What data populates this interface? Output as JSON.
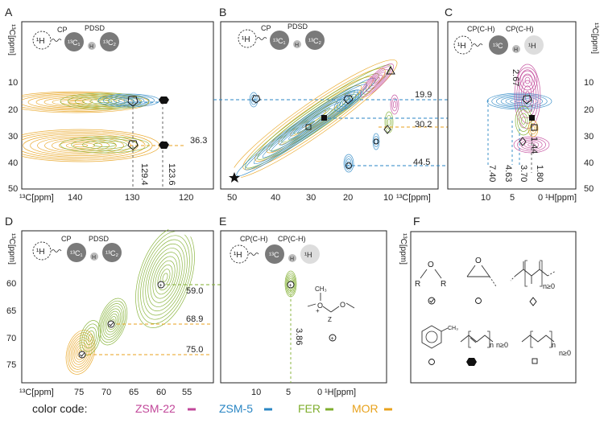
{
  "panels": {
    "A": {
      "letter": "A",
      "scheme": {
        "h": "¹H",
        "labels": [
          "CP",
          "PDSD"
        ],
        "nodes": [
          "¹³C₁",
          "H",
          "¹³C₂"
        ]
      },
      "xaxis": {
        "label": "¹³C[ppm]",
        "ticks": [
          "140",
          "130",
          "120"
        ]
      },
      "yaxis": {
        "label": "¹³C[ppm]",
        "ticks": [
          "10",
          "20",
          "30",
          "40",
          "50"
        ]
      },
      "annotations": {
        "v1": "129.4",
        "v2": "123.6",
        "h1": "36.3"
      }
    },
    "B": {
      "letter": "B",
      "scheme": {
        "h": "¹H",
        "labels": [
          "CP",
          "PDSD"
        ],
        "nodes": [
          "¹³C₁",
          "H",
          "¹³C₂"
        ]
      },
      "xaxis": {
        "label": "¹³C[ppm]",
        "ticks": [
          "50",
          "40",
          "30",
          "20",
          "10"
        ]
      },
      "annotations": {
        "a1": "19.9",
        "a2": "30.2",
        "a3": "44.5"
      }
    },
    "C": {
      "letter": "C",
      "scheme": {
        "h": "¹H",
        "labels": [
          "CP(C-H)",
          "CP(C-H)"
        ],
        "nodes": [
          "¹³C",
          "H",
          "¹H"
        ]
      },
      "xaxis": {
        "label": "¹H[ppm]",
        "ticks": [
          "10",
          "5",
          "0"
        ]
      },
      "yaxis": {
        "label": "¹³C[ppm]",
        "ticks": [
          "10",
          "20",
          "30",
          "40",
          "50"
        ]
      },
      "annotations": {
        "c1": "2.67",
        "c2": "1.44",
        "c3": "7.40",
        "c4": "4.63",
        "c5": "3.70",
        "c6": "1.80"
      }
    },
    "D": {
      "letter": "D",
      "scheme": {
        "h": "¹H",
        "labels": [
          "CP",
          "PDSD"
        ],
        "nodes": [
          "¹³C₁",
          "H",
          "¹³C₂"
        ]
      },
      "xaxis": {
        "label": "¹³C[ppm]",
        "ticks": [
          "75",
          "70",
          "65",
          "60",
          "55"
        ]
      },
      "yaxis": {
        "label": "¹³C[ppm]",
        "ticks": [
          "60",
          "65",
          "70",
          "75"
        ]
      },
      "annotations": {
        "d1": "59.0",
        "d2": "68.9",
        "d3": "75.0"
      }
    },
    "E": {
      "letter": "E",
      "scheme": {
        "h": "¹H",
        "labels": [
          "CP(C-H)",
          "CP(C-H)"
        ],
        "nodes": [
          "¹³C",
          "H",
          "¹H"
        ]
      },
      "xaxis": {
        "label": "¹H[ppm]",
        "ticks": [
          "10",
          "5",
          "0"
        ]
      },
      "yaxis": {
        "label": "¹³C[ppm]"
      },
      "annotations": {
        "e1": "3.86"
      },
      "molecule": {
        "ch3": "CH₃",
        "o": "O",
        "plus": "+",
        "z": "Z"
      }
    },
    "F": {
      "letter": "F",
      "structures": {
        "r1": "R",
        "r2": "R",
        "o1": "O",
        "o2": "O",
        "n1": "n≥0",
        "ch3": "CH₃",
        "n2": "n",
        "n3": "n≥0",
        "n4": "n",
        "n5": "n≥0"
      }
    }
  },
  "legend": {
    "label": "color code:",
    "items": [
      {
        "name": "ZSM-22",
        "color": "#c2479a"
      },
      {
        "name": "ZSM-5",
        "color": "#2a86c4"
      },
      {
        "name": "FER",
        "color": "#7fae2e"
      },
      {
        "name": "MOR",
        "color": "#e8a21c"
      }
    ]
  }
}
